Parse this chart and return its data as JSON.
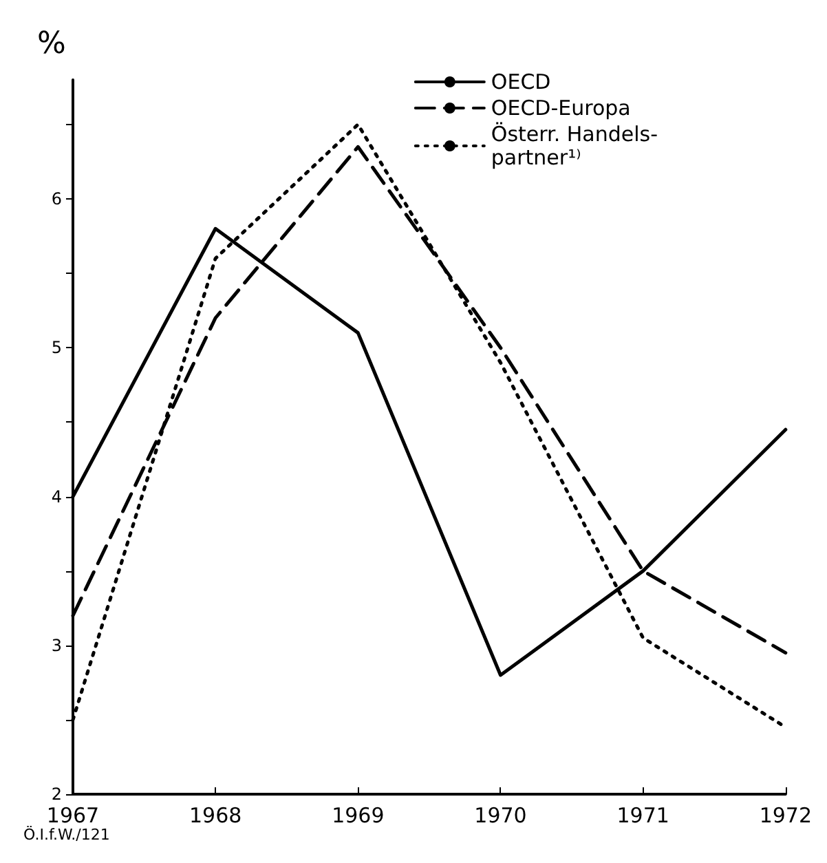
{
  "chart_data": {
    "type": "line",
    "ylabel": "%",
    "categories": [
      "1967",
      "1968",
      "1969",
      "1970",
      "1971",
      "1972"
    ],
    "series": [
      {
        "name": "OECD",
        "color": "#000000",
        "line_style": "solid",
        "values": [
          4.0,
          5.8,
          5.1,
          2.8,
          3.5,
          4.45
        ]
      },
      {
        "name": "OECD-Europa",
        "color": "#000000",
        "line_style": "dashed",
        "values": [
          3.2,
          5.2,
          6.35,
          5.0,
          3.5,
          2.95
        ]
      },
      {
        "name": "Österr. Handels-\npartner¹⁾",
        "color": "#000000",
        "line_style": "dotted",
        "values": [
          2.5,
          5.6,
          6.5,
          4.9,
          3.05,
          2.45
        ]
      }
    ],
    "ylim": [
      2,
      6.8
    ],
    "yticks": [
      2,
      {
        "value": 2.5,
        "label": null
      },
      3,
      {
        "value": 3.5,
        "label": null
      },
      4,
      {
        "value": 4.5,
        "label": null
      },
      5,
      {
        "value": 5.5,
        "label": null
      },
      6,
      {
        "value": 6.5,
        "label": null
      }
    ],
    "grid": false,
    "legend": "top right",
    "marker": "none",
    "annotations": [
      "Ö.I.f.W./121"
    ]
  }
}
